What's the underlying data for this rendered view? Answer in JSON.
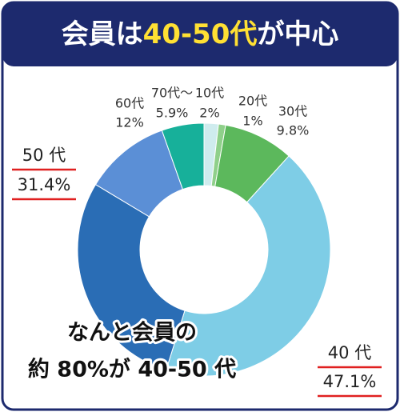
{
  "chart_data": {
    "type": "donut",
    "title_parts": [
      "会員は",
      "40-50代",
      "が中心"
    ],
    "categories": [
      "10代",
      "20代",
      "30代",
      "40 代",
      "50 代",
      "60代",
      "70代〜"
    ],
    "values": [
      2,
      1,
      9.8,
      47.1,
      31.4,
      12,
      5.9
    ],
    "value_labels": [
      "2%",
      "1%",
      "9.8%",
      "47.1%",
      "31.4%",
      "12%",
      "5.9%"
    ],
    "colors": [
      "#cfecee",
      "#8fd08a",
      "#5cb85c",
      "#7ecde6",
      "#2a6db5",
      "#5b8fd6",
      "#17b09a"
    ],
    "annotation": [
      "なんと会員の",
      "約 80%が 40-50 代"
    ]
  }
}
